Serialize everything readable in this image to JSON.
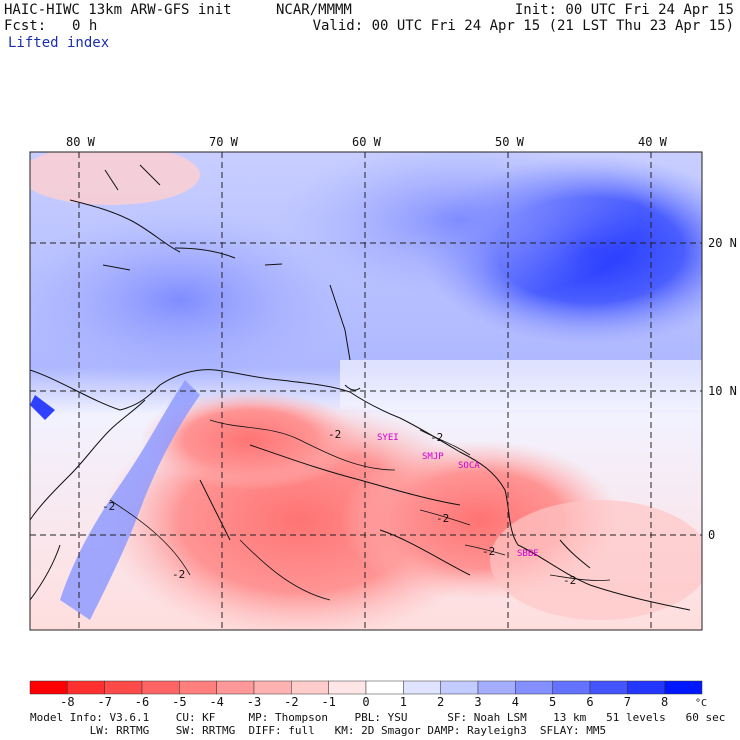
{
  "header": {
    "model_title": "HAIC-HIWC 13km ARW-GFS init",
    "org": "NCAR/MMMM",
    "init_time": "Init: 00 UTC Fri 24 Apr 15",
    "fcst_label": "Fcst:",
    "fcst_value": "0 h",
    "valid_time": "Valid: 00 UTC Fri 24 Apr 15 (21 LST Thu 23 Apr 15)",
    "field_name": "Lifted index"
  },
  "map": {
    "longitude_labels": [
      "80 W",
      "70 W",
      "60 W",
      "50 W",
      "40 W"
    ],
    "latitude_labels": [
      "20 N",
      "10 N",
      "0"
    ],
    "contour_labels": [
      "-2",
      "-2",
      "-2",
      "-2",
      "-2",
      "-2",
      "-2"
    ],
    "station_labels": [
      "SYEI",
      "SMJP",
      "SOCA",
      "SBBE"
    ],
    "station_color": "#d000d0"
  },
  "colorbar": {
    "ticks": [
      "-8",
      "-7",
      "-6",
      "-5",
      "-4",
      "-3",
      "-2",
      "-1",
      "0",
      "1",
      "2",
      "3",
      "4",
      "5",
      "6",
      "7",
      "8"
    ],
    "unit": "°C",
    "colors": [
      "#ff0000",
      "#ff3030",
      "#ff4a4a",
      "#ff6464",
      "#ff7e7e",
      "#ff9898",
      "#ffb2b2",
      "#ffcccc",
      "#ffe6e6",
      "#ffffff",
      "#e0e4ff",
      "#c4cbff",
      "#a4adff",
      "#8490ff",
      "#6473ff",
      "#4454ff",
      "#2437ff",
      "#0018ff"
    ]
  },
  "footer": {
    "line1": "Model Info: V3.6.1    CU: KF     MP: Thompson    PBL: YSU      SF: Noah LSM    13 km   51 levels   60 sec",
    "line2": "         LW: RRTMG    SW: RRTMG  DIFF: full   KM: 2D Smagor DAMP: Rayleigh3  SFLAY: MM5"
  }
}
